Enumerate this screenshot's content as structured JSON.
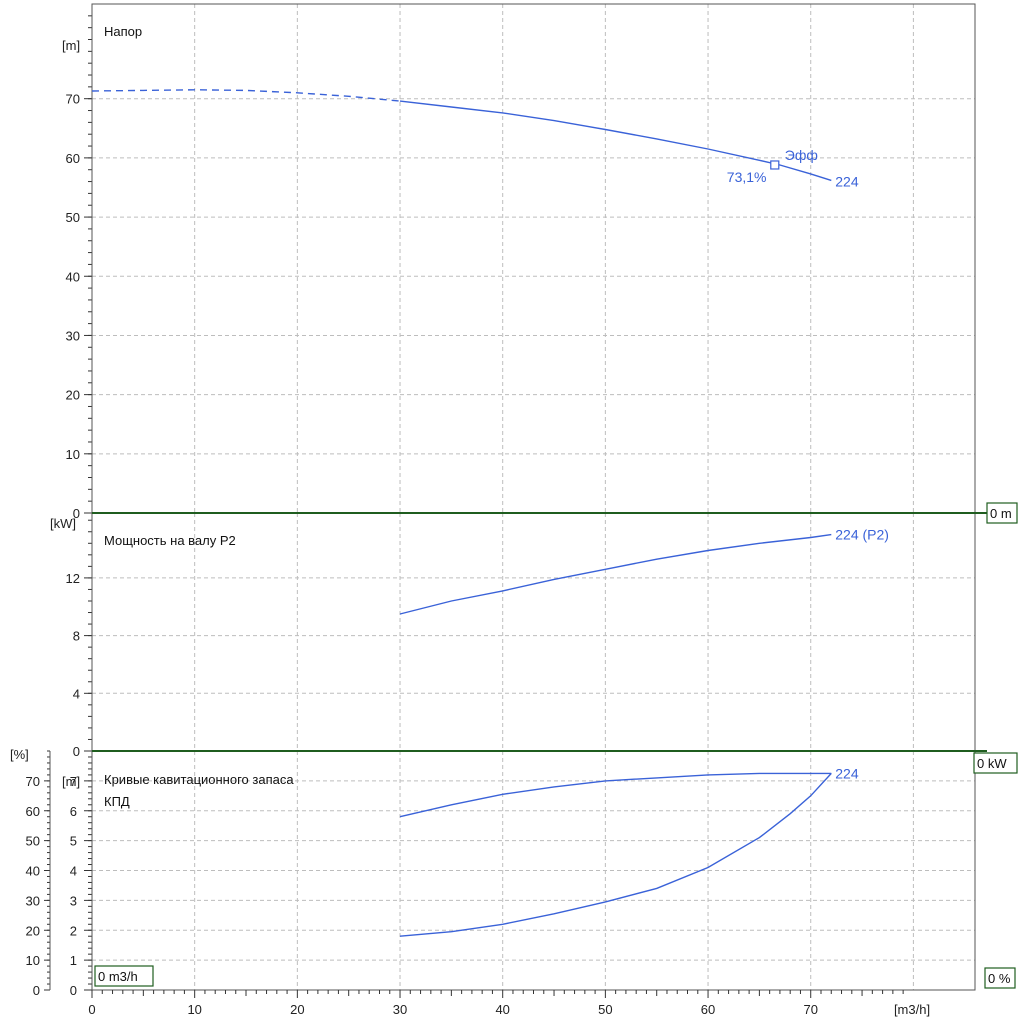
{
  "chart_data": {
    "type": "line",
    "colors": {
      "series": "#3a62d8",
      "frame": "#1f5d1f",
      "grid": "#bdbdbd"
    },
    "x_axis": {
      "label": "[m3/h]",
      "range": [
        0,
        86
      ],
      "ticks": [
        "0",
        "10",
        "20",
        "30",
        "40",
        "50",
        "60",
        "70"
      ],
      "tick_values": [
        0,
        10,
        20,
        30,
        40,
        50,
        60,
        70
      ]
    },
    "grid": true,
    "panels": [
      {
        "title": "Напор",
        "yunit": "[m]",
        "ylim": [
          0,
          86
        ],
        "yticks": [
          "0",
          "10",
          "20",
          "30",
          "40",
          "50",
          "60",
          "70"
        ],
        "ytick_values": [
          0,
          10,
          20,
          30,
          40,
          50,
          60,
          70
        ],
        "box_label": "0 m",
        "series": [
          {
            "name": "224",
            "dashed_segment": {
              "x": [
                0,
                5,
                10,
                15,
                20,
                25,
                30
              ],
              "y": [
                71.3,
                71.4,
                71.5,
                71.4,
                71.0,
                70.4,
                69.6
              ]
            },
            "solid_segment": {
              "x": [
                30,
                35,
                40,
                45,
                50,
                55,
                60,
                65,
                67,
                70,
                72
              ],
              "y": [
                69.6,
                68.6,
                67.6,
                66.3,
                64.8,
                63.2,
                61.5,
                59.6,
                58.8,
                57.3,
                56.2
              ]
            }
          }
        ],
        "marker": {
          "x": 66.5,
          "y": 58.8,
          "label_top": "Эфф",
          "label_bottom": "73,1%"
        }
      },
      {
        "title": "Мощность на валу P2",
        "yunit": "[kW]",
        "ylim": [
          0,
          16.5
        ],
        "yticks": [
          "0",
          "4",
          "8",
          "12"
        ],
        "ytick_values": [
          0,
          4,
          8,
          12
        ],
        "box_label": "0 kW",
        "series": [
          {
            "name": "224 (P2)",
            "x": [
              30,
              35,
              40,
              45,
              50,
              55,
              60,
              65,
              70,
              72
            ],
            "y": [
              9.5,
              10.4,
              11.1,
              11.9,
              12.6,
              13.3,
              13.9,
              14.4,
              14.8,
              15.0
            ]
          }
        ]
      },
      {
        "title": "Кривые кавитационного запаса",
        "title2": "КПД",
        "yunit": "[m]",
        "yunit2": "[%]",
        "ylim": [
          0,
          8
        ],
        "yticks": [
          "0",
          "1",
          "2",
          "3",
          "4",
          "5",
          "6",
          "7"
        ],
        "ytick_values": [
          0,
          1,
          2,
          3,
          4,
          5,
          6,
          7
        ],
        "ylim2": [
          0,
          80
        ],
        "yticks2": [
          "0",
          "10",
          "20",
          "30",
          "40",
          "50",
          "60",
          "70"
        ],
        "ytick_values2": [
          0,
          10,
          20,
          30,
          40,
          50,
          60,
          70
        ],
        "box_label": "0 m3/h",
        "box_label2": "0 %",
        "series": [
          {
            "name": "224",
            "axis": "left",
            "x": [
              30,
              35,
              40,
              45,
              50,
              55,
              60,
              65,
              70,
              72
            ],
            "y": [
              5.8,
              6.2,
              6.55,
              6.8,
              7.0,
              7.1,
              7.2,
              7.25,
              7.25,
              7.25
            ]
          },
          {
            "name": "",
            "axis": "right",
            "x": [
              30,
              35,
              40,
              45,
              50,
              55,
              60,
              65,
              68,
              70,
              72
            ],
            "y": [
              18,
              19.5,
              22,
              25.5,
              29.5,
              34,
              41,
              51,
              59,
              65,
              72.5
            ]
          }
        ]
      }
    ]
  }
}
